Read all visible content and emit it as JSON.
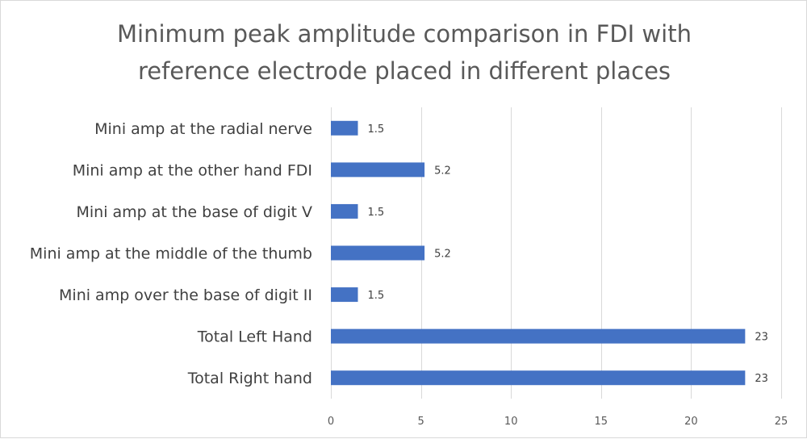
{
  "chart_data": {
    "type": "bar",
    "orientation": "horizontal",
    "title_lines": [
      "Minimum peak amplitude comparison in FDI with",
      "reference electrode placed in different places"
    ],
    "categories": [
      "Mini amp at the radial nerve",
      "Mini amp at the other hand FDI",
      "Mini amp at the base of digit V",
      "Mini amp at the middle of the thumb",
      "Mini amp over the base of digit II",
      "Total Left Hand",
      "Total Right hand"
    ],
    "values": [
      1.5,
      5.2,
      1.5,
      5.2,
      1.5,
      23,
      23
    ],
    "xlim": [
      0,
      25
    ],
    "xticks": [
      0,
      5,
      10,
      15,
      20,
      25
    ],
    "grid": "vertical",
    "legend": "none",
    "bar_color": "#4472C4"
  }
}
